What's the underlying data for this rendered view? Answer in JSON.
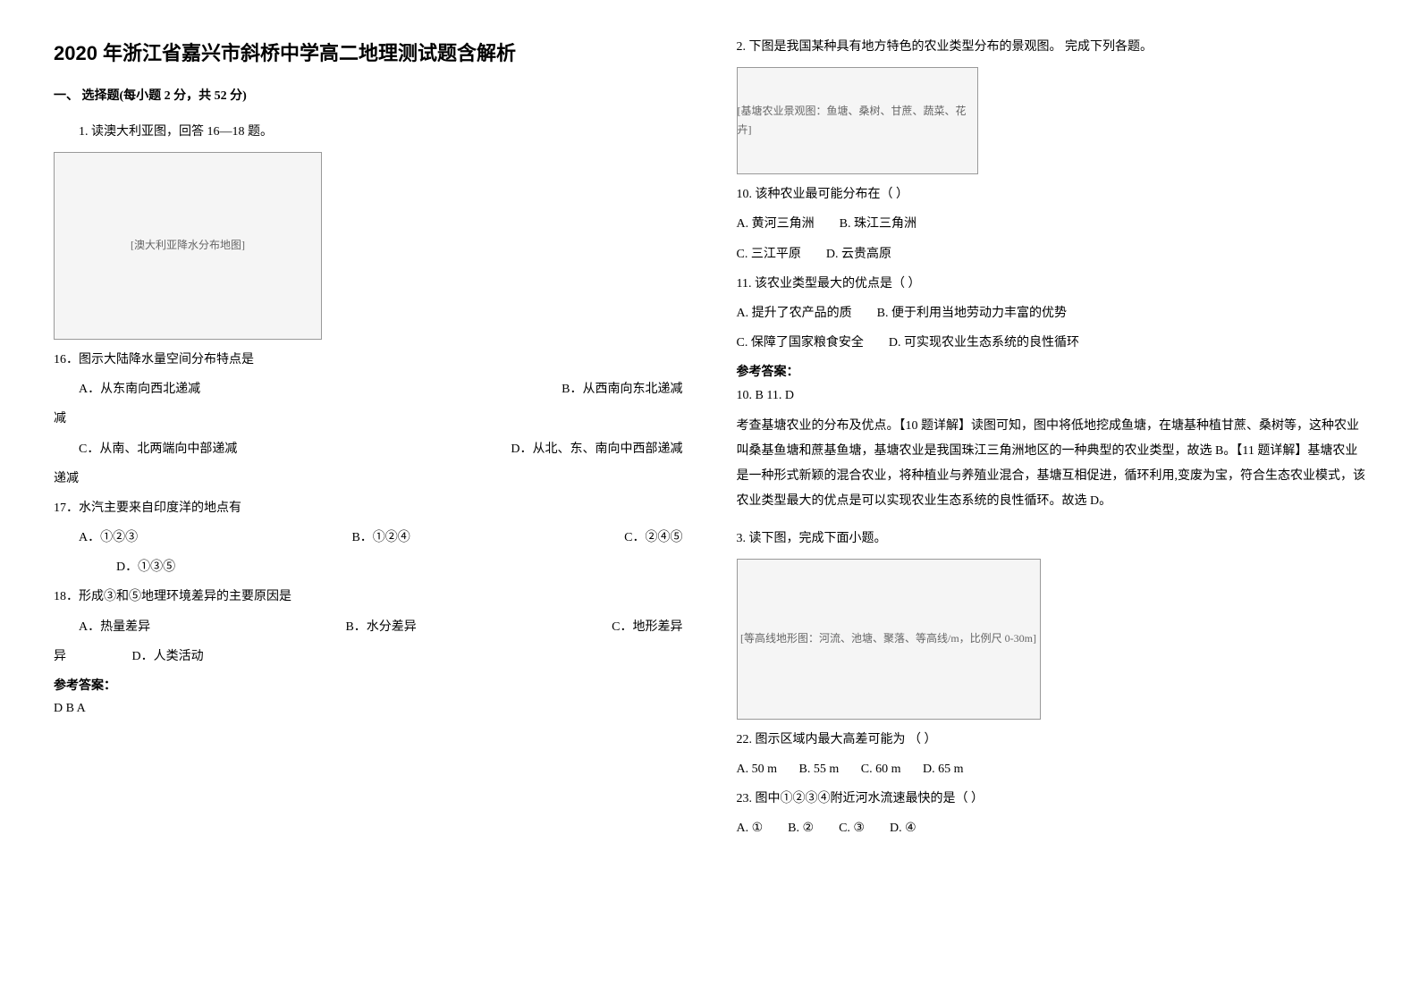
{
  "header": {
    "title": "2020 年浙江省嘉兴市斜桥中学高二地理测试题含解析",
    "section": "一、 选择题(每小题 2 分，共 52 分)"
  },
  "q1": {
    "intro": "1. 读澳大利亚图，回答 16—18 题。",
    "image_alt": "[澳大利亚降水分布地图]",
    "q16_stem": "16．图示大陆降水量空间分布特点是",
    "q16_a": "A．从东南向西北递减",
    "q16_b": "B．从西南向东北递减",
    "q16_c": "C．从南、北两端向中部递减",
    "q16_d": "D．从北、东、南向中西部递减",
    "q17_stem": "17．水汽主要来自印度洋的地点有",
    "q17_a": "A．①②③",
    "q17_b": "B．①②④",
    "q17_c": "C．②④⑤",
    "q17_d": "D．①③⑤",
    "q18_stem": "18．形成③和⑤地理环境差异的主要原因是",
    "q18_a": "A．热量差异",
    "q18_b": "B．水分差异",
    "q18_c": "C．地形差异",
    "q18_d": "D．人类活动",
    "answer_label": "参考答案：",
    "answer": "D  B  A"
  },
  "q2": {
    "intro": "2. 下图是我国某种具有地方特色的农业类型分布的景观图。 完成下列各题。",
    "image_alt": "[基塘农业景观图：鱼塘、桑树、甘蔗、蔬菜、花卉]",
    "q10_stem": "10. 该种农业最可能分布在（  ）",
    "q10_a": "A. 黄河三角洲",
    "q10_b": "B. 珠江三角洲",
    "q10_c": "C. 三江平原",
    "q10_d": "D. 云贵高原",
    "q11_stem": "11. 该农业类型最大的优点是（  ）",
    "q11_a": "A. 提升了农产品的质",
    "q11_b": "B. 便于利用当地劳动力丰富的优势",
    "q11_c": "C. 保障了国家粮食安全",
    "q11_d": "D. 可实现农业生态系统的良性循环",
    "answer_label": "参考答案：",
    "answer": "10. B        11. D",
    "explanation1": "考查基塘农业的分布及优点。【10 题详解】读图可知，图中将低地挖成鱼塘，在塘基种植甘蔗、桑树等，这种农业叫桑基鱼塘和蔗基鱼塘，基塘农业是我国珠江三角洲地区的一种典型的农业类型，故选 B。【11 题详解】基塘农业是一种形式新颖的混合农业，将种植业与养殖业混合，基塘互相促进，循环利用,变废为宝，符合生态农业模式，该农业类型最大的优点是可以实现农业生态系统的良性循环。故选 D。"
  },
  "q3": {
    "intro": "3. 读下图，完成下面小题。",
    "image_alt": "[等高线地形图：河流、池塘、聚落、等高线/m，比例尺 0-30m]",
    "q22_stem": "22. 图示区域内最大高差可能为    （         ）",
    "q22_a": "A. 50 m",
    "q22_b": "B. 55 m",
    "q22_c": "C. 60 m",
    "q22_d": "D. 65 m",
    "q23_stem": "23. 图中①②③④附近河水流速最快的是（         ）",
    "q23_a": "A. ①",
    "q23_b": "B. ②",
    "q23_c": "C. ③",
    "q23_d": "D. ④"
  }
}
